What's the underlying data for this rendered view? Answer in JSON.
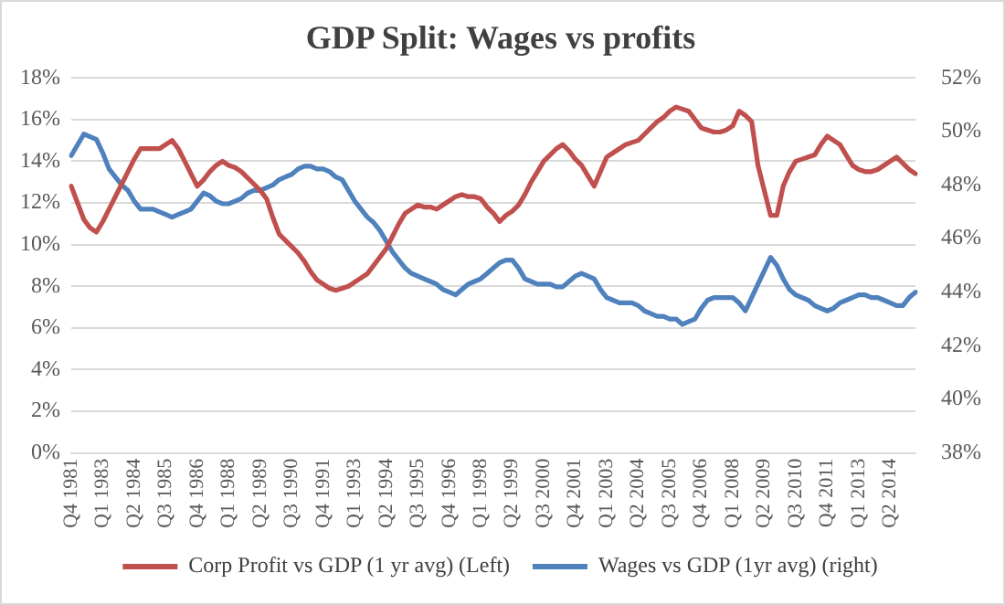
{
  "chart_data": {
    "type": "line",
    "title": "GDP Split: Wages vs profits",
    "categories": [
      "Q4 1981",
      null,
      null,
      null,
      null,
      "Q1 1983",
      null,
      null,
      null,
      null,
      "Q2 1984",
      null,
      null,
      null,
      null,
      "Q3 1985",
      null,
      null,
      null,
      null,
      "Q4 1986",
      null,
      null,
      null,
      null,
      "Q1 1988",
      null,
      null,
      null,
      null,
      "Q2 1989",
      null,
      null,
      null,
      null,
      "Q3 1990",
      null,
      null,
      null,
      null,
      "Q4 1991",
      null,
      null,
      null,
      null,
      "Q1 1993",
      null,
      null,
      null,
      null,
      "Q2 1994",
      null,
      null,
      null,
      null,
      "Q3 1995",
      null,
      null,
      null,
      null,
      "Q4 1996",
      null,
      null,
      null,
      null,
      "Q1 1998",
      null,
      null,
      null,
      null,
      "Q2 1999",
      null,
      null,
      null,
      null,
      "Q3 2000",
      null,
      null,
      null,
      null,
      "Q4 2001",
      null,
      null,
      null,
      null,
      "Q1 2003",
      null,
      null,
      null,
      null,
      "Q2 2004",
      null,
      null,
      null,
      null,
      "Q3 2005",
      null,
      null,
      null,
      null,
      "Q4 2006",
      null,
      null,
      null,
      null,
      "Q1 2008",
      null,
      null,
      null,
      null,
      "Q2 2009",
      null,
      null,
      null,
      null,
      "Q3 2010",
      null,
      null,
      null,
      null,
      "Q4 2011",
      null,
      null,
      null,
      null,
      "Q1 2013",
      null,
      null,
      null,
      null,
      "Q2 2014",
      null,
      null,
      null,
      null
    ],
    "series": [
      {
        "name": "Corp Profit vs GDP (1 yr avg) (Left)",
        "color": "#c0504d",
        "axis": "y",
        "values": [
          12.8,
          12.0,
          11.2,
          10.8,
          10.6,
          11.1,
          11.7,
          12.3,
          12.9,
          13.5,
          14.1,
          14.6,
          14.6,
          14.6,
          14.6,
          14.8,
          15.0,
          14.6,
          14.0,
          13.4,
          12.8,
          13.1,
          13.5,
          13.8,
          14.0,
          13.8,
          13.7,
          13.5,
          13.2,
          12.9,
          12.6,
          12.2,
          11.3,
          10.5,
          10.2,
          9.9,
          9.6,
          9.2,
          8.7,
          8.3,
          8.1,
          7.9,
          7.8,
          7.9,
          8.0,
          8.2,
          8.4,
          8.6,
          9.0,
          9.4,
          9.8,
          10.4,
          11.0,
          11.5,
          11.7,
          11.9,
          11.8,
          11.8,
          11.7,
          11.9,
          12.1,
          12.3,
          12.4,
          12.3,
          12.3,
          12.2,
          11.8,
          11.5,
          11.1,
          11.4,
          11.6,
          11.9,
          12.4,
          13.0,
          13.5,
          14.0,
          14.3,
          14.6,
          14.8,
          14.5,
          14.1,
          13.8,
          13.3,
          12.8,
          13.5,
          14.2,
          14.4,
          14.6,
          14.8,
          14.9,
          15.0,
          15.3,
          15.6,
          15.9,
          16.1,
          16.4,
          16.6,
          16.5,
          16.4,
          16.0,
          15.6,
          15.5,
          15.4,
          15.4,
          15.5,
          15.7,
          16.4,
          16.2,
          15.9,
          13.8,
          12.6,
          11.4,
          11.4,
          12.8,
          13.5,
          14.0,
          14.1,
          14.2,
          14.3,
          14.8,
          15.2,
          15.0,
          14.8,
          14.3,
          13.8,
          13.6,
          13.5,
          13.5,
          13.6,
          13.8,
          14.0,
          14.2,
          13.9,
          13.6,
          13.4
        ]
      },
      {
        "name": "Wages vs GDP (1yr avg) (right)",
        "color": "#4f81bd",
        "axis": "y2",
        "values": [
          49.1,
          49.5,
          49.9,
          49.8,
          49.7,
          49.2,
          48.6,
          48.3,
          48.0,
          47.8,
          47.4,
          47.1,
          47.1,
          47.1,
          47.0,
          46.9,
          46.8,
          46.9,
          47.0,
          47.1,
          47.4,
          47.7,
          47.6,
          47.4,
          47.3,
          47.3,
          47.4,
          47.5,
          47.7,
          47.8,
          47.8,
          47.9,
          48.0,
          48.2,
          48.3,
          48.4,
          48.6,
          48.7,
          48.7,
          48.6,
          48.6,
          48.5,
          48.3,
          48.2,
          47.8,
          47.4,
          47.1,
          46.8,
          46.6,
          46.3,
          45.9,
          45.5,
          45.2,
          44.9,
          44.7,
          44.6,
          44.5,
          44.4,
          44.3,
          44.1,
          44.0,
          43.9,
          44.1,
          44.3,
          44.4,
          44.5,
          44.7,
          44.9,
          45.1,
          45.2,
          45.2,
          44.9,
          44.5,
          44.4,
          44.3,
          44.3,
          44.3,
          44.2,
          44.2,
          44.4,
          44.6,
          44.7,
          44.6,
          44.5,
          44.1,
          43.8,
          43.7,
          43.6,
          43.6,
          43.6,
          43.5,
          43.3,
          43.2,
          43.1,
          43.1,
          43.0,
          43.0,
          42.8,
          42.9,
          43.0,
          43.4,
          43.7,
          43.8,
          43.8,
          43.8,
          43.8,
          43.6,
          43.3,
          43.8,
          44.3,
          44.8,
          45.3,
          45.0,
          44.5,
          44.1,
          43.9,
          43.8,
          43.7,
          43.5,
          43.4,
          43.3,
          43.4,
          43.6,
          43.7,
          43.8,
          43.9,
          43.9,
          43.8,
          43.8,
          43.7,
          43.6,
          43.5,
          43.5,
          43.8,
          44.0
        ]
      }
    ],
    "ylim": [
      0,
      18
    ],
    "yticks": [
      {
        "value": 0,
        "label": "0%"
      },
      {
        "value": 2,
        "label": "2%"
      },
      {
        "value": 4,
        "label": "4%"
      },
      {
        "value": 6,
        "label": "6%"
      },
      {
        "value": 8,
        "label": "8%"
      },
      {
        "value": 10,
        "label": "10%"
      },
      {
        "value": 12,
        "label": "12%"
      },
      {
        "value": 14,
        "label": "14%"
      },
      {
        "value": 16,
        "label": "16%"
      },
      {
        "value": 18,
        "label": "18%"
      }
    ],
    "y2lim": [
      38,
      52
    ],
    "y2ticks": [
      {
        "value": 38,
        "label": "38%"
      },
      {
        "value": 40,
        "label": "40%"
      },
      {
        "value": 42,
        "label": "42%"
      },
      {
        "value": 44,
        "label": "44%"
      },
      {
        "value": 46,
        "label": "46%"
      },
      {
        "value": 48,
        "label": "48%"
      },
      {
        "value": 50,
        "label": "50%"
      },
      {
        "value": 52,
        "label": "52%"
      }
    ],
    "grid": "y",
    "legend": "bottom",
    "marker": "none",
    "line_style": "solid"
  }
}
